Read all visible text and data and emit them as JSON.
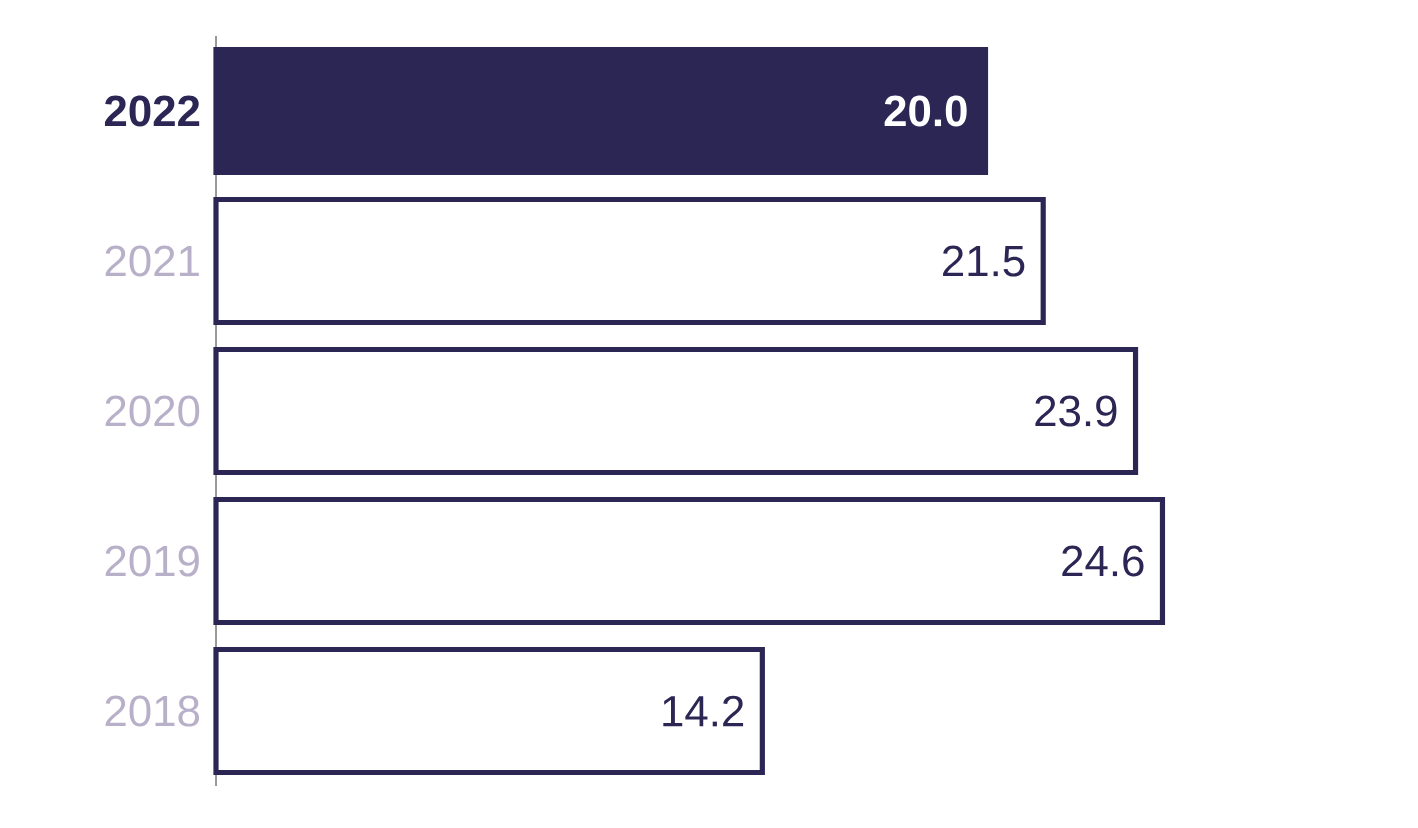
{
  "chart_data": {
    "type": "bar",
    "orientation": "horizontal",
    "categories": [
      "2022",
      "2021",
      "2020",
      "2019",
      "2018"
    ],
    "values": [
      20.0,
      21.5,
      23.9,
      24.6,
      14.2
    ],
    "value_labels": [
      "20.0",
      "21.5",
      "23.9",
      "24.6",
      "14.2"
    ],
    "color": "#2b2654",
    "colors": [
      "#2b2654",
      "#ffffff",
      "#ffffff",
      "#ffffff",
      "#ffffff"
    ]
  }
}
